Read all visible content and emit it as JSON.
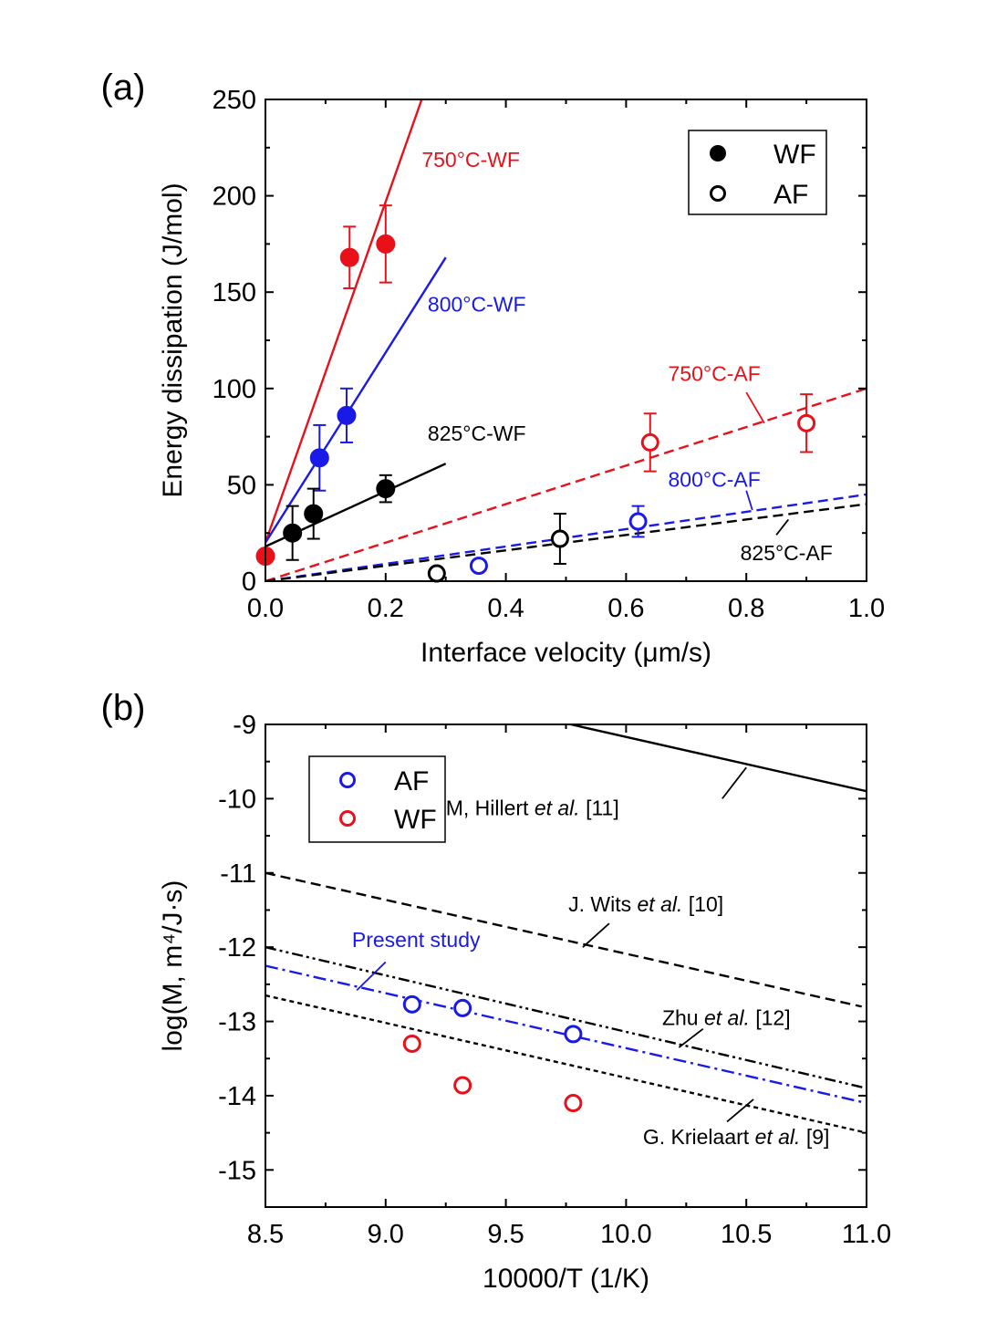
{
  "chart_data": [
    {
      "panel_label": "(a)",
      "type": "scatter",
      "xlabel": "Interface velocity (μm/s)",
      "ylabel": "Energy dissipation (J/mol)",
      "xlim": [
        0.0,
        1.0
      ],
      "ylim": [
        0,
        250
      ],
      "x_ticks": [
        "0.0",
        "0.2",
        "0.4",
        "0.6",
        "0.8",
        "1.0"
      ],
      "y_ticks": [
        "0",
        "50",
        "100",
        "150",
        "200",
        "250"
      ],
      "legend": {
        "placement": "top-right",
        "entries": [
          {
            "label": "WF",
            "marker": "filled-circle"
          },
          {
            "label": "AF",
            "marker": "open-circle"
          }
        ]
      },
      "series": [
        {
          "marker": "filled",
          "color": "#e8111a",
          "x": [
            0.0,
            0.14,
            0.2
          ],
          "y": [
            13,
            168,
            175
          ],
          "yerr": [
            0,
            16,
            20
          ]
        },
        {
          "marker": "filled",
          "color": "#1a1ae6",
          "x": [
            0.09,
            0.135
          ],
          "y": [
            64,
            86
          ],
          "yerr": [
            17,
            14
          ]
        },
        {
          "marker": "filled",
          "color": "#000000",
          "x": [
            0.045,
            0.08,
            0.2
          ],
          "y": [
            25,
            35,
            48
          ],
          "yerr": [
            14,
            13,
            7
          ]
        },
        {
          "marker": "open",
          "color": "#e8111a",
          "x": [
            0.64,
            0.9
          ],
          "y": [
            72,
            82
          ],
          "yerr": [
            15,
            15
          ]
        },
        {
          "marker": "open",
          "color": "#1a1ae6",
          "x": [
            0.355,
            0.62
          ],
          "y": [
            8,
            31
          ],
          "yerr": [
            0,
            8
          ]
        },
        {
          "marker": "open",
          "color": "#000000",
          "x": [
            0.285,
            0.49
          ],
          "y": [
            4,
            22
          ],
          "yerr": [
            0,
            13
          ]
        }
      ],
      "fit_lines": [
        {
          "label": "750°C-WF",
          "color": "#e8111a",
          "style": "solid",
          "x": [
            0.0,
            0.26
          ],
          "y": [
            20,
            250
          ],
          "label_pos": [
            0.26,
            215
          ]
        },
        {
          "label": "800°C-WF",
          "color": "#1a1ae6",
          "style": "solid",
          "x": [
            0.0,
            0.3
          ],
          "y": [
            20,
            168
          ],
          "label_pos": [
            0.27,
            140
          ]
        },
        {
          "label": "825°C-WF",
          "color": "#000000",
          "style": "solid",
          "x": [
            0.0,
            0.3
          ],
          "y": [
            18,
            61
          ],
          "label_pos": [
            0.27,
            73
          ]
        },
        {
          "label": "750°C-AF",
          "color": "#e8111a",
          "style": "dashed",
          "x": [
            0.0,
            1.0
          ],
          "y": [
            0,
            100
          ],
          "label_pos": [
            0.67,
            104
          ],
          "leader": [
            [
              0.8,
              98
            ],
            [
              0.83,
              82
            ]
          ]
        },
        {
          "label": "800°C-AF",
          "color": "#1a1ae6",
          "style": "dashed",
          "x": [
            0.0,
            1.0
          ],
          "y": [
            0,
            45
          ],
          "label_pos": [
            0.67,
            49
          ],
          "leader": [
            [
              0.8,
              47
            ],
            [
              0.81,
              37
            ]
          ]
        },
        {
          "label": "825°C-AF",
          "color": "#000000",
          "style": "dashed",
          "x": [
            0.0,
            1.0
          ],
          "y": [
            0,
            40
          ],
          "label_pos": [
            0.79,
            11
          ],
          "leader": [
            [
              0.85,
              24
            ],
            [
              0.87,
              32
            ]
          ]
        }
      ]
    },
    {
      "panel_label": "(b)",
      "type": "scatter",
      "xlabel": "10000/T (1/K)",
      "ylabel": "log(M, m⁴/J·s)",
      "xlim": [
        8.5,
        11.0
      ],
      "ylim": [
        -15.5,
        -9.0
      ],
      "x_ticks": [
        "8.5",
        "9.0",
        "9.5",
        "10.0",
        "10.5",
        "11.0"
      ],
      "y_ticks": [
        "-9",
        "-10",
        "-11",
        "-12",
        "-13",
        "-14",
        "-15"
      ],
      "legend": {
        "placement": "top-left",
        "entries": [
          {
            "label": "AF",
            "color": "#1a1ae6",
            "marker": "open-circle"
          },
          {
            "label": "WF",
            "color": "#e8111a",
            "marker": "open-circle"
          }
        ]
      },
      "series": [
        {
          "label": "AF",
          "marker": "open",
          "color": "#1a1ae6",
          "x": [
            9.11,
            9.32,
            9.78
          ],
          "y": [
            -12.77,
            -12.82,
            -13.17
          ]
        },
        {
          "label": "WF",
          "marker": "open",
          "color": "#e8111a",
          "x": [
            9.11,
            9.32,
            9.78
          ],
          "y": [
            -13.3,
            -13.86,
            -14.1
          ]
        }
      ],
      "reference_lines": [
        {
          "label_parts": [
            "M, Hillert ",
            "et al.",
            " [11]"
          ],
          "color": "#000000",
          "style": "solid",
          "x": [
            9.77,
            11.0
          ],
          "y": [
            -9.0,
            -9.9
          ],
          "label_pos": [
            9.25,
            -10.22
          ],
          "leader": [
            [
              10.4,
              -10.0
            ],
            [
              10.5,
              -9.58
            ]
          ]
        },
        {
          "label_parts": [
            "J. Wits ",
            "et al.",
            " [10]"
          ],
          "color": "#000000",
          "style": "dashed",
          "x": [
            8.5,
            10.98
          ],
          "y": [
            -11.0,
            -12.8
          ],
          "label_pos": [
            9.76,
            -11.52
          ],
          "leader": [
            [
              9.82,
              -12.0
            ],
            [
              9.93,
              -11.68
            ]
          ]
        },
        {
          "label_parts": [
            "Present study"
          ],
          "color": "#1a1ae6",
          "style": "dashdot",
          "x": [
            8.5,
            11.0
          ],
          "y": [
            -12.25,
            -14.1
          ],
          "label_pos": [
            8.86,
            -12.0
          ],
          "leader": [
            [
              8.88,
              -12.58
            ],
            [
              9.0,
              -12.2
            ]
          ]
        },
        {
          "label_parts": [
            "Zhu ",
            "et al.",
            " [12]"
          ],
          "color": "#000000",
          "style": "dashdotdot",
          "x": [
            8.5,
            11.0
          ],
          "y": [
            -12.0,
            -13.9
          ],
          "label_pos": [
            10.15,
            -13.05
          ],
          "leader": [
            [
              10.22,
              -13.35
            ],
            [
              10.32,
              -13.1
            ]
          ]
        },
        {
          "label_parts": [
            "G. Krielaart ",
            "et al.",
            " [9]"
          ],
          "color": "#000000",
          "style": "dotted",
          "x": [
            8.5,
            11.0
          ],
          "y": [
            -12.65,
            -14.5
          ],
          "label_pos": [
            10.07,
            -14.65
          ],
          "leader": [
            [
              10.42,
              -14.35
            ],
            [
              10.53,
              -14.05
            ]
          ]
        }
      ]
    }
  ]
}
